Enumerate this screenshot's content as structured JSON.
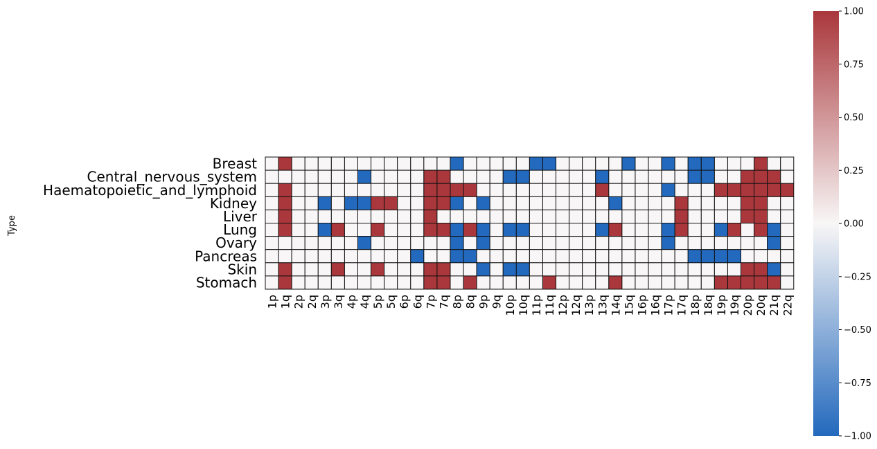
{
  "chart_data": {
    "type": "heatmap",
    "ylabel": "Type",
    "xlabel": "",
    "rows": [
      "Breast",
      "Central_nervous_system",
      "Haematopoietic_and_lymphoid",
      "Kidney",
      "Liver",
      "Lung",
      "Ovary",
      "Pancreas",
      "Skin",
      "Stomach"
    ],
    "columns": [
      "1p",
      "1q",
      "2p",
      "2q",
      "3p",
      "3q",
      "4p",
      "4q",
      "5p",
      "5q",
      "6p",
      "6q",
      "7p",
      "7q",
      "8p",
      "8q",
      "9p",
      "9q",
      "10p",
      "10q",
      "11p",
      "11q",
      "12p",
      "12q",
      "13p",
      "13q",
      "14q",
      "15q",
      "16p",
      "16q",
      "17p",
      "17q",
      "18p",
      "18q",
      "19p",
      "19q",
      "20p",
      "20q",
      "21q",
      "22q"
    ],
    "values": [
      [
        0,
        1,
        0,
        0,
        0,
        0,
        0,
        0,
        0,
        0,
        0,
        0,
        0,
        0,
        -1,
        0,
        0,
        0,
        0,
        0,
        -1,
        -1,
        0,
        0,
        0,
        0,
        0,
        -1,
        0,
        0,
        -1,
        0,
        -1,
        -1,
        0,
        0,
        0,
        1,
        0,
        0
      ],
      [
        0,
        0,
        0,
        0,
        0,
        0,
        0,
        -1,
        0,
        0,
        0,
        0,
        1,
        1,
        0,
        0,
        0,
        0,
        -1,
        -1,
        0,
        0,
        0,
        0,
        0,
        -1,
        0,
        0,
        0,
        0,
        0,
        0,
        -1,
        -1,
        0,
        0,
        1,
        1,
        1,
        0
      ],
      [
        0,
        1,
        0,
        0,
        0,
        0,
        0,
        0,
        0,
        0,
        0,
        0,
        1,
        1,
        1,
        1,
        0,
        0,
        0,
        0,
        0,
        0,
        0,
        0,
        0,
        1,
        0,
        0,
        0,
        0,
        -1,
        0,
        0,
        0,
        1,
        1,
        1,
        1,
        1,
        1
      ],
      [
        0,
        1,
        0,
        0,
        -1,
        0,
        -1,
        -1,
        1,
        1,
        0,
        0,
        1,
        1,
        -1,
        0,
        -1,
        0,
        0,
        0,
        0,
        0,
        0,
        0,
        0,
        0,
        -1,
        0,
        0,
        0,
        0,
        1,
        0,
        0,
        0,
        0,
        1,
        1,
        0,
        0
      ],
      [
        0,
        1,
        0,
        0,
        0,
        0,
        0,
        0,
        0,
        0,
        0,
        0,
        1,
        0,
        0,
        0,
        0,
        0,
        0,
        0,
        0,
        0,
        0,
        0,
        0,
        0,
        0,
        0,
        0,
        0,
        0,
        1,
        0,
        0,
        0,
        0,
        1,
        1,
        0,
        0
      ],
      [
        0,
        1,
        0,
        0,
        -1,
        1,
        0,
        0,
        1,
        0,
        0,
        0,
        1,
        1,
        -1,
        1,
        -1,
        0,
        -1,
        -1,
        0,
        0,
        0,
        0,
        0,
        -1,
        1,
        0,
        0,
        0,
        -1,
        1,
        0,
        0,
        -1,
        1,
        0,
        1,
        -1,
        0
      ],
      [
        0,
        0,
        0,
        0,
        0,
        0,
        0,
        -1,
        0,
        0,
        0,
        0,
        0,
        0,
        -1,
        0,
        -1,
        0,
        0,
        0,
        0,
        0,
        0,
        0,
        0,
        0,
        0,
        0,
        0,
        0,
        -1,
        0,
        0,
        0,
        0,
        0,
        0,
        0,
        -1,
        0
      ],
      [
        0,
        0,
        0,
        0,
        0,
        0,
        0,
        0,
        0,
        0,
        0,
        -1,
        0,
        0,
        -1,
        -1,
        0,
        0,
        0,
        0,
        0,
        0,
        0,
        0,
        0,
        0,
        0,
        0,
        0,
        0,
        0,
        0,
        -1,
        -1,
        -1,
        -1,
        0,
        0,
        0,
        0
      ],
      [
        0,
        1,
        0,
        0,
        0,
        1,
        0,
        0,
        1,
        0,
        0,
        0,
        1,
        1,
        0,
        0,
        -1,
        0,
        -1,
        -1,
        0,
        0,
        0,
        0,
        0,
        0,
        0,
        0,
        0,
        0,
        0,
        0,
        0,
        0,
        0,
        0,
        1,
        1,
        -1,
        0
      ],
      [
        0,
        1,
        0,
        0,
        0,
        0,
        0,
        0,
        0,
        0,
        0,
        0,
        1,
        1,
        0,
        1,
        0,
        0,
        0,
        0,
        0,
        1,
        0,
        0,
        0,
        0,
        1,
        0,
        0,
        0,
        0,
        0,
        0,
        0,
        1,
        1,
        1,
        1,
        1,
        0
      ]
    ],
    "zlim": [
      -1,
      1
    ],
    "colorbar_ticks": [
      "1.00",
      "0.75",
      "0.50",
      "0.25",
      "0.00",
      "−0.25",
      "−0.50",
      "−0.75",
      "−1.00"
    ],
    "colormap": {
      "neg": "#2369bd",
      "mid": "#f8f6f6",
      "pos": "#a9373b"
    },
    "grid": true,
    "legend": "colorbar-right"
  }
}
